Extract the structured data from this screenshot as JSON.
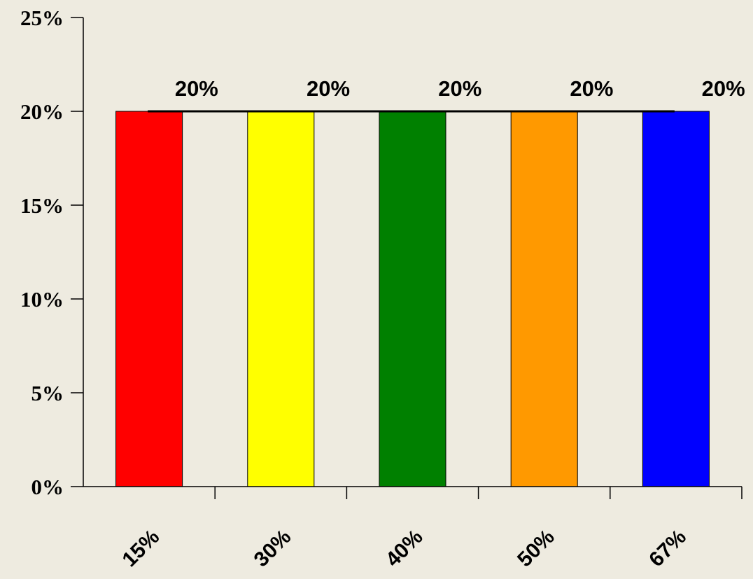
{
  "chart_data": {
    "type": "bar",
    "categories": [
      "15%",
      "30%",
      "40%",
      "50%",
      "67%"
    ],
    "values": [
      20,
      20,
      20,
      20,
      20
    ],
    "value_labels": [
      "20%",
      "20%",
      "20%",
      "20%",
      "20%"
    ],
    "colors": [
      "#ff0000",
      "#ffff00",
      "#008000",
      "#ff9900",
      "#0000ff"
    ],
    "ylim": [
      0,
      25
    ],
    "yticks": [
      0,
      5,
      10,
      15,
      20,
      25
    ],
    "ytick_labels": [
      "0%",
      "5%",
      "10%",
      "15%",
      "20%",
      "25%"
    ],
    "reference_line": 20,
    "grid": false,
    "title": "",
    "xlabel": "",
    "ylabel": ""
  }
}
